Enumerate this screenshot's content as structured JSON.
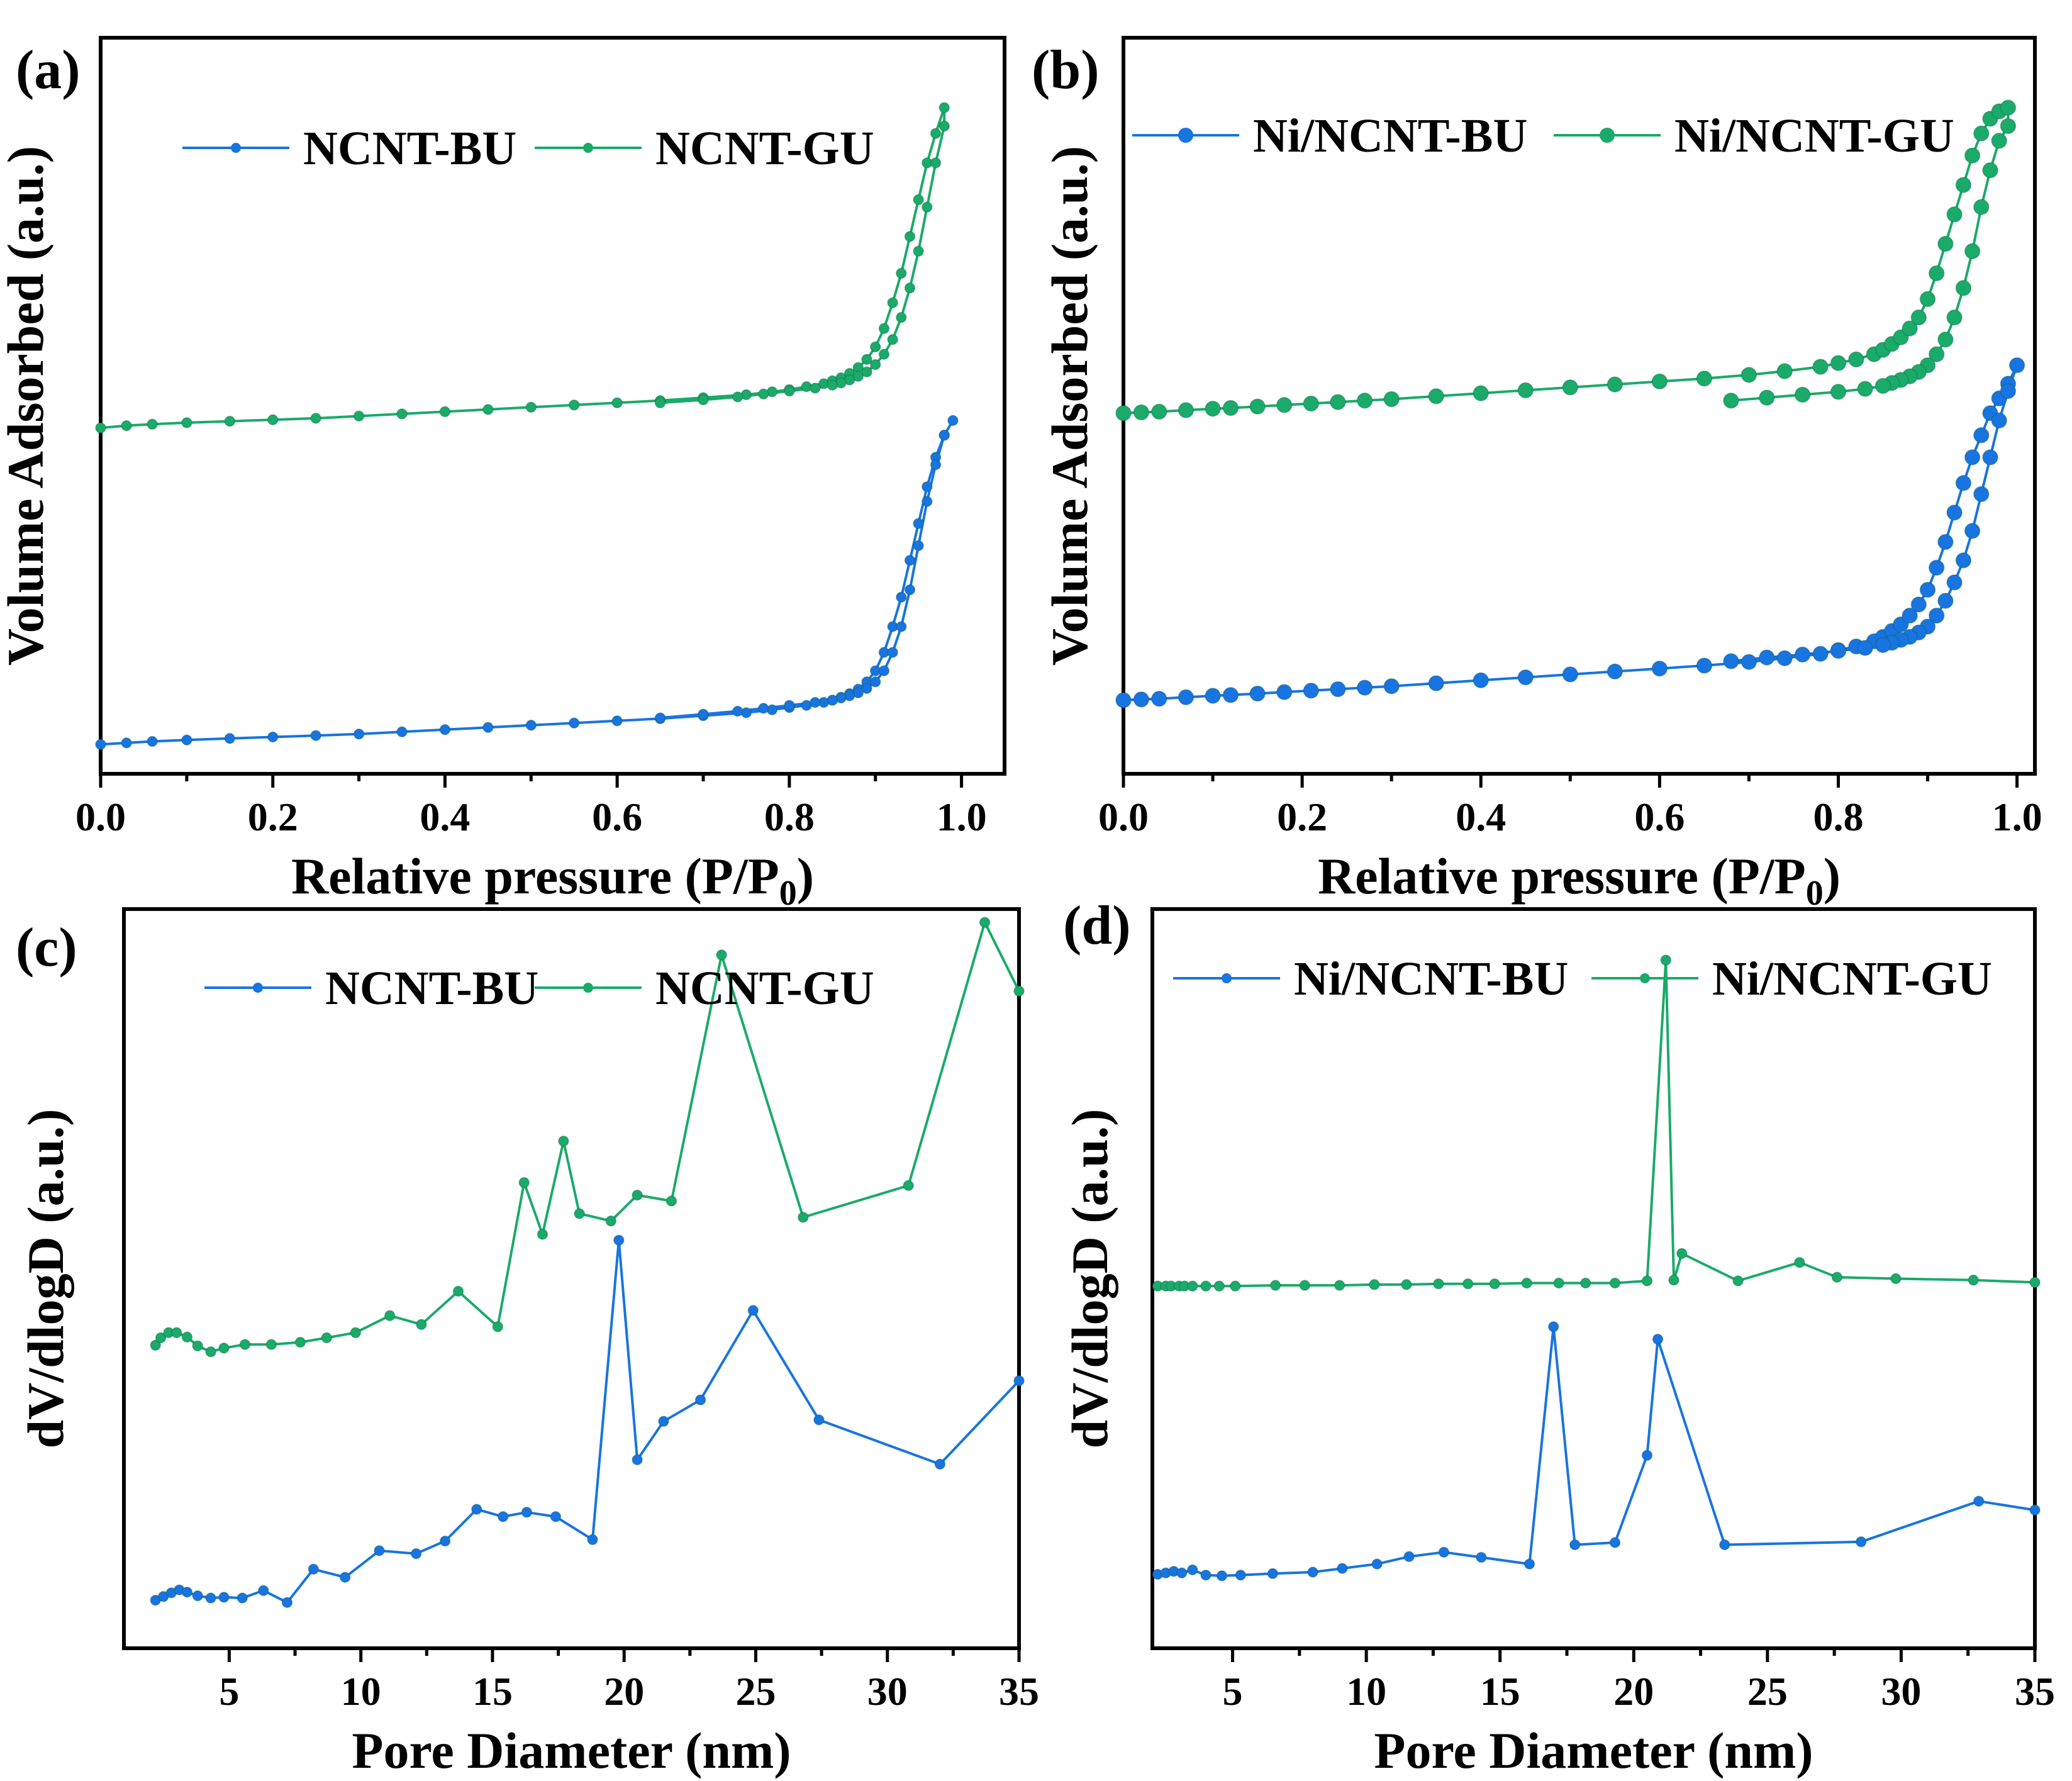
{
  "colors": {
    "blue": "#1874e0",
    "green": "#1aaa6a",
    "axis": "#000000"
  },
  "chart_data": [
    {
      "panel": "(a)",
      "type": "line",
      "xlabel": "Relative pressure (P/P",
      "xlabel_sub": "0",
      "xlabel_close": ")",
      "ylabel": "Volume Adsorbed (a.u.)",
      "xlim": [
        0.0,
        1.05
      ],
      "ylim": [
        0,
        1
      ],
      "y_ticks_labeled": false,
      "xticks": [
        "0.0",
        "0.2",
        "0.4",
        "0.6",
        "0.8",
        "1.0"
      ],
      "legend_position": "top-center",
      "marker_size": "small",
      "series": [
        {
          "name": "NCNT-BU",
          "color": "#1874e0",
          "x": [
            0.0,
            0.03,
            0.06,
            0.1,
            0.15,
            0.2,
            0.25,
            0.3,
            0.35,
            0.4,
            0.45,
            0.5,
            0.55,
            0.6,
            0.65,
            0.7,
            0.75,
            0.78,
            0.8,
            0.82,
            0.84,
            0.85,
            0.86,
            0.87,
            0.88,
            0.89,
            0.9,
            0.91,
            0.92,
            0.93,
            0.94,
            0.95,
            0.96,
            0.97,
            0.98,
            0.99,
            0.98,
            0.97,
            0.96,
            0.95,
            0.94,
            0.93,
            0.92,
            0.91,
            0.9,
            0.89,
            0.88,
            0.87,
            0.86,
            0.85,
            0.83,
            0.8,
            0.77,
            0.74,
            0.7,
            0.65
          ],
          "y": [
            0.04,
            0.042,
            0.044,
            0.046,
            0.048,
            0.05,
            0.052,
            0.054,
            0.057,
            0.06,
            0.063,
            0.066,
            0.069,
            0.072,
            0.075,
            0.079,
            0.083,
            0.087,
            0.09,
            0.093,
            0.097,
            0.1,
            0.104,
            0.109,
            0.115,
            0.125,
            0.14,
            0.165,
            0.2,
            0.24,
            0.29,
            0.34,
            0.39,
            0.43,
            0.46,
            0.48,
            0.46,
            0.42,
            0.37,
            0.31,
            0.25,
            0.2,
            0.165,
            0.14,
            0.125,
            0.116,
            0.11,
            0.106,
            0.103,
            0.1,
            0.097,
            0.093,
            0.089,
            0.085,
            0.081,
            0.076
          ]
        },
        {
          "name": "NCNT-GU",
          "color": "#1aaa6a",
          "x": [
            0.0,
            0.03,
            0.06,
            0.1,
            0.15,
            0.2,
            0.25,
            0.3,
            0.35,
            0.4,
            0.45,
            0.5,
            0.55,
            0.6,
            0.65,
            0.7,
            0.75,
            0.78,
            0.8,
            0.82,
            0.84,
            0.85,
            0.86,
            0.87,
            0.88,
            0.89,
            0.9,
            0.91,
            0.92,
            0.93,
            0.94,
            0.95,
            0.96,
            0.97,
            0.98,
            0.98,
            0.97,
            0.96,
            0.95,
            0.94,
            0.93,
            0.92,
            0.91,
            0.9,
            0.89,
            0.88,
            0.87,
            0.86,
            0.85,
            0.83,
            0.8,
            0.77,
            0.74,
            0.7,
            0.65
          ],
          "y": [
            0.47,
            0.473,
            0.475,
            0.477,
            0.479,
            0.481,
            0.483,
            0.486,
            0.489,
            0.492,
            0.495,
            0.498,
            0.501,
            0.504,
            0.507,
            0.511,
            0.515,
            0.519,
            0.522,
            0.526,
            0.53,
            0.534,
            0.538,
            0.544,
            0.552,
            0.563,
            0.58,
            0.605,
            0.64,
            0.68,
            0.73,
            0.78,
            0.83,
            0.87,
            0.905,
            0.88,
            0.83,
            0.77,
            0.71,
            0.66,
            0.62,
            0.59,
            0.57,
            0.556,
            0.546,
            0.54,
            0.535,
            0.531,
            0.528,
            0.524,
            0.52,
            0.516,
            0.512,
            0.508,
            0.504
          ]
        }
      ]
    },
    {
      "panel": "(b)",
      "type": "line",
      "xlabel": "Relative pressure (P/P",
      "xlabel_sub": "0",
      "xlabel_close": ")",
      "ylabel": "Volume Adsorbed (a.u.)",
      "xlim": [
        0.0,
        1.02
      ],
      "ylim": [
        0,
        1
      ],
      "y_ticks_labeled": false,
      "xticks": [
        "0.0",
        "0.2",
        "0.4",
        "0.6",
        "0.8",
        "1.0"
      ],
      "legend_position": "top-center",
      "marker_size": "large",
      "series": [
        {
          "name": "Ni/NCNT-BU",
          "color": "#1874e0",
          "x": [
            0.0,
            0.02,
            0.04,
            0.07,
            0.1,
            0.12,
            0.15,
            0.18,
            0.21,
            0.24,
            0.27,
            0.3,
            0.35,
            0.4,
            0.45,
            0.5,
            0.55,
            0.6,
            0.65,
            0.7,
            0.74,
            0.78,
            0.8,
            0.82,
            0.84,
            0.85,
            0.86,
            0.87,
            0.88,
            0.89,
            0.9,
            0.91,
            0.92,
            0.93,
            0.94,
            0.95,
            0.96,
            0.97,
            0.98,
            0.99,
            1.0,
            0.99,
            0.98,
            0.97,
            0.96,
            0.95,
            0.94,
            0.93,
            0.92,
            0.91,
            0.9,
            0.89,
            0.88,
            0.87,
            0.86,
            0.85,
            0.83,
            0.8,
            0.76,
            0.72,
            0.68
          ],
          "y": [
            0.1,
            0.101,
            0.102,
            0.104,
            0.106,
            0.107,
            0.109,
            0.111,
            0.113,
            0.115,
            0.117,
            0.119,
            0.123,
            0.127,
            0.131,
            0.135,
            0.139,
            0.143,
            0.147,
            0.152,
            0.157,
            0.163,
            0.168,
            0.173,
            0.18,
            0.186,
            0.194,
            0.203,
            0.215,
            0.23,
            0.25,
            0.28,
            0.315,
            0.355,
            0.395,
            0.43,
            0.46,
            0.49,
            0.51,
            0.53,
            0.555,
            0.52,
            0.48,
            0.43,
            0.38,
            0.33,
            0.29,
            0.26,
            0.235,
            0.215,
            0.2,
            0.192,
            0.186,
            0.182,
            0.178,
            0.175,
            0.171,
            0.167,
            0.162,
            0.158,
            0.153
          ]
        },
        {
          "name": "Ni/NCNT-GU",
          "color": "#1aaa6a",
          "x": [
            0.0,
            0.02,
            0.04,
            0.07,
            0.1,
            0.12,
            0.15,
            0.18,
            0.21,
            0.24,
            0.27,
            0.3,
            0.35,
            0.4,
            0.45,
            0.5,
            0.55,
            0.6,
            0.65,
            0.7,
            0.74,
            0.78,
            0.8,
            0.82,
            0.84,
            0.85,
            0.86,
            0.87,
            0.88,
            0.89,
            0.9,
            0.91,
            0.92,
            0.93,
            0.94,
            0.95,
            0.96,
            0.97,
            0.98,
            0.99,
            0.99,
            0.98,
            0.97,
            0.96,
            0.95,
            0.94,
            0.93,
            0.92,
            0.91,
            0.9,
            0.89,
            0.88,
            0.87,
            0.86,
            0.85,
            0.83,
            0.8,
            0.76,
            0.72,
            0.68
          ],
          "y": [
            0.49,
            0.491,
            0.492,
            0.494,
            0.496,
            0.497,
            0.499,
            0.501,
            0.503,
            0.505,
            0.507,
            0.509,
            0.513,
            0.517,
            0.521,
            0.525,
            0.529,
            0.533,
            0.537,
            0.542,
            0.547,
            0.553,
            0.558,
            0.563,
            0.57,
            0.576,
            0.584,
            0.593,
            0.605,
            0.62,
            0.645,
            0.68,
            0.72,
            0.76,
            0.8,
            0.84,
            0.87,
            0.89,
            0.9,
            0.905,
            0.88,
            0.86,
            0.82,
            0.77,
            0.71,
            0.66,
            0.62,
            0.59,
            0.57,
            0.555,
            0.546,
            0.54,
            0.535,
            0.531,
            0.527,
            0.523,
            0.519,
            0.515,
            0.511,
            0.507
          ]
        }
      ]
    },
    {
      "panel": "(c)",
      "type": "line",
      "xlabel": "Pore Diameter (nm)",
      "ylabel": "dV/dlogD (a.u.)",
      "xlim": [
        1.0,
        35.0
      ],
      "ylim": [
        0,
        1
      ],
      "y_ticks_labeled": false,
      "xticks": [
        "5",
        "10",
        "15",
        "20",
        "25",
        "30",
        "35"
      ],
      "legend_position": "top-center",
      "marker_size": "small",
      "series": [
        {
          "name": "NCNT-BU",
          "color": "#1874e0",
          "x": [
            2.2,
            2.5,
            2.8,
            3.1,
            3.4,
            3.8,
            4.3,
            4.8,
            5.5,
            6.3,
            7.2,
            8.2,
            9.4,
            10.7,
            12.1,
            13.2,
            14.4,
            15.4,
            16.3,
            17.4,
            18.8,
            19.8,
            20.5,
            21.5,
            22.9,
            24.9,
            27.4,
            32.0,
            35.0
          ],
          "y": [
            0.065,
            0.07,
            0.075,
            0.079,
            0.076,
            0.071,
            0.068,
            0.069,
            0.068,
            0.078,
            0.062,
            0.107,
            0.096,
            0.132,
            0.128,
            0.145,
            0.188,
            0.178,
            0.184,
            0.178,
            0.147,
            0.552,
            0.255,
            0.307,
            0.336,
            0.457,
            0.309,
            0.249,
            0.362
          ]
        },
        {
          "name": "NCNT-GU",
          "color": "#1aaa6a",
          "x": [
            2.2,
            2.4,
            2.7,
            3.0,
            3.4,
            3.8,
            4.3,
            4.8,
            5.6,
            6.6,
            7.7,
            8.7,
            9.8,
            11.1,
            12.3,
            13.7,
            15.2,
            16.2,
            16.9,
            17.7,
            18.3,
            19.5,
            20.5,
            21.8,
            23.7,
            26.8,
            30.8,
            33.7,
            35.0
          ],
          "y": [
            0.41,
            0.42,
            0.427,
            0.427,
            0.421,
            0.409,
            0.401,
            0.406,
            0.411,
            0.411,
            0.414,
            0.42,
            0.427,
            0.45,
            0.438,
            0.483,
            0.435,
            0.63,
            0.56,
            0.686,
            0.588,
            0.578,
            0.613,
            0.605,
            0.938,
            0.583,
            0.626,
            0.982,
            0.889
          ]
        }
      ]
    },
    {
      "panel": "(d)",
      "type": "line",
      "xlabel": "Pore Diameter (nm)",
      "ylabel": "dV/dlogD (a.u.)",
      "xlim": [
        2.0,
        35.0
      ],
      "ylim": [
        0,
        1
      ],
      "y_ticks_labeled": false,
      "xticks": [
        "5",
        "10",
        "15",
        "20",
        "25",
        "30",
        "35"
      ],
      "legend_position": "top-center",
      "marker_size": "small",
      "series": [
        {
          "name": "Ni/NCNT-BU",
          "color": "#1874e0",
          "x": [
            2.2,
            2.5,
            2.8,
            3.1,
            3.5,
            4.0,
            4.6,
            5.3,
            6.5,
            8.0,
            9.1,
            10.4,
            11.6,
            12.9,
            14.3,
            16.1,
            17.0,
            17.8,
            19.3,
            20.5,
            20.9,
            23.4,
            28.5,
            32.9,
            35.0
          ],
          "y": [
            0.1,
            0.102,
            0.104,
            0.102,
            0.106,
            0.099,
            0.098,
            0.099,
            0.101,
            0.103,
            0.108,
            0.114,
            0.124,
            0.13,
            0.123,
            0.114,
            0.435,
            0.14,
            0.143,
            0.261,
            0.418,
            0.14,
            0.144,
            0.199,
            0.187
          ]
        },
        {
          "name": "Ni/NCNT-GU",
          "color": "#1aaa6a",
          "x": [
            2.2,
            2.5,
            2.7,
            3.0,
            3.2,
            3.5,
            4.0,
            4.5,
            5.1,
            6.6,
            7.7,
            9.0,
            10.3,
            11.5,
            12.7,
            13.8,
            14.8,
            16.0,
            17.2,
            18.2,
            19.3,
            20.5,
            21.2,
            21.5,
            21.8,
            23.9,
            26.2,
            27.6,
            29.8,
            32.7,
            35.0
          ],
          "y": [
            0.49,
            0.49,
            0.49,
            0.49,
            0.49,
            0.49,
            0.49,
            0.49,
            0.49,
            0.491,
            0.491,
            0.491,
            0.492,
            0.492,
            0.493,
            0.493,
            0.493,
            0.494,
            0.494,
            0.494,
            0.494,
            0.497,
            0.931,
            0.498,
            0.534,
            0.497,
            0.522,
            0.502,
            0.5,
            0.498,
            0.495
          ]
        }
      ]
    }
  ]
}
